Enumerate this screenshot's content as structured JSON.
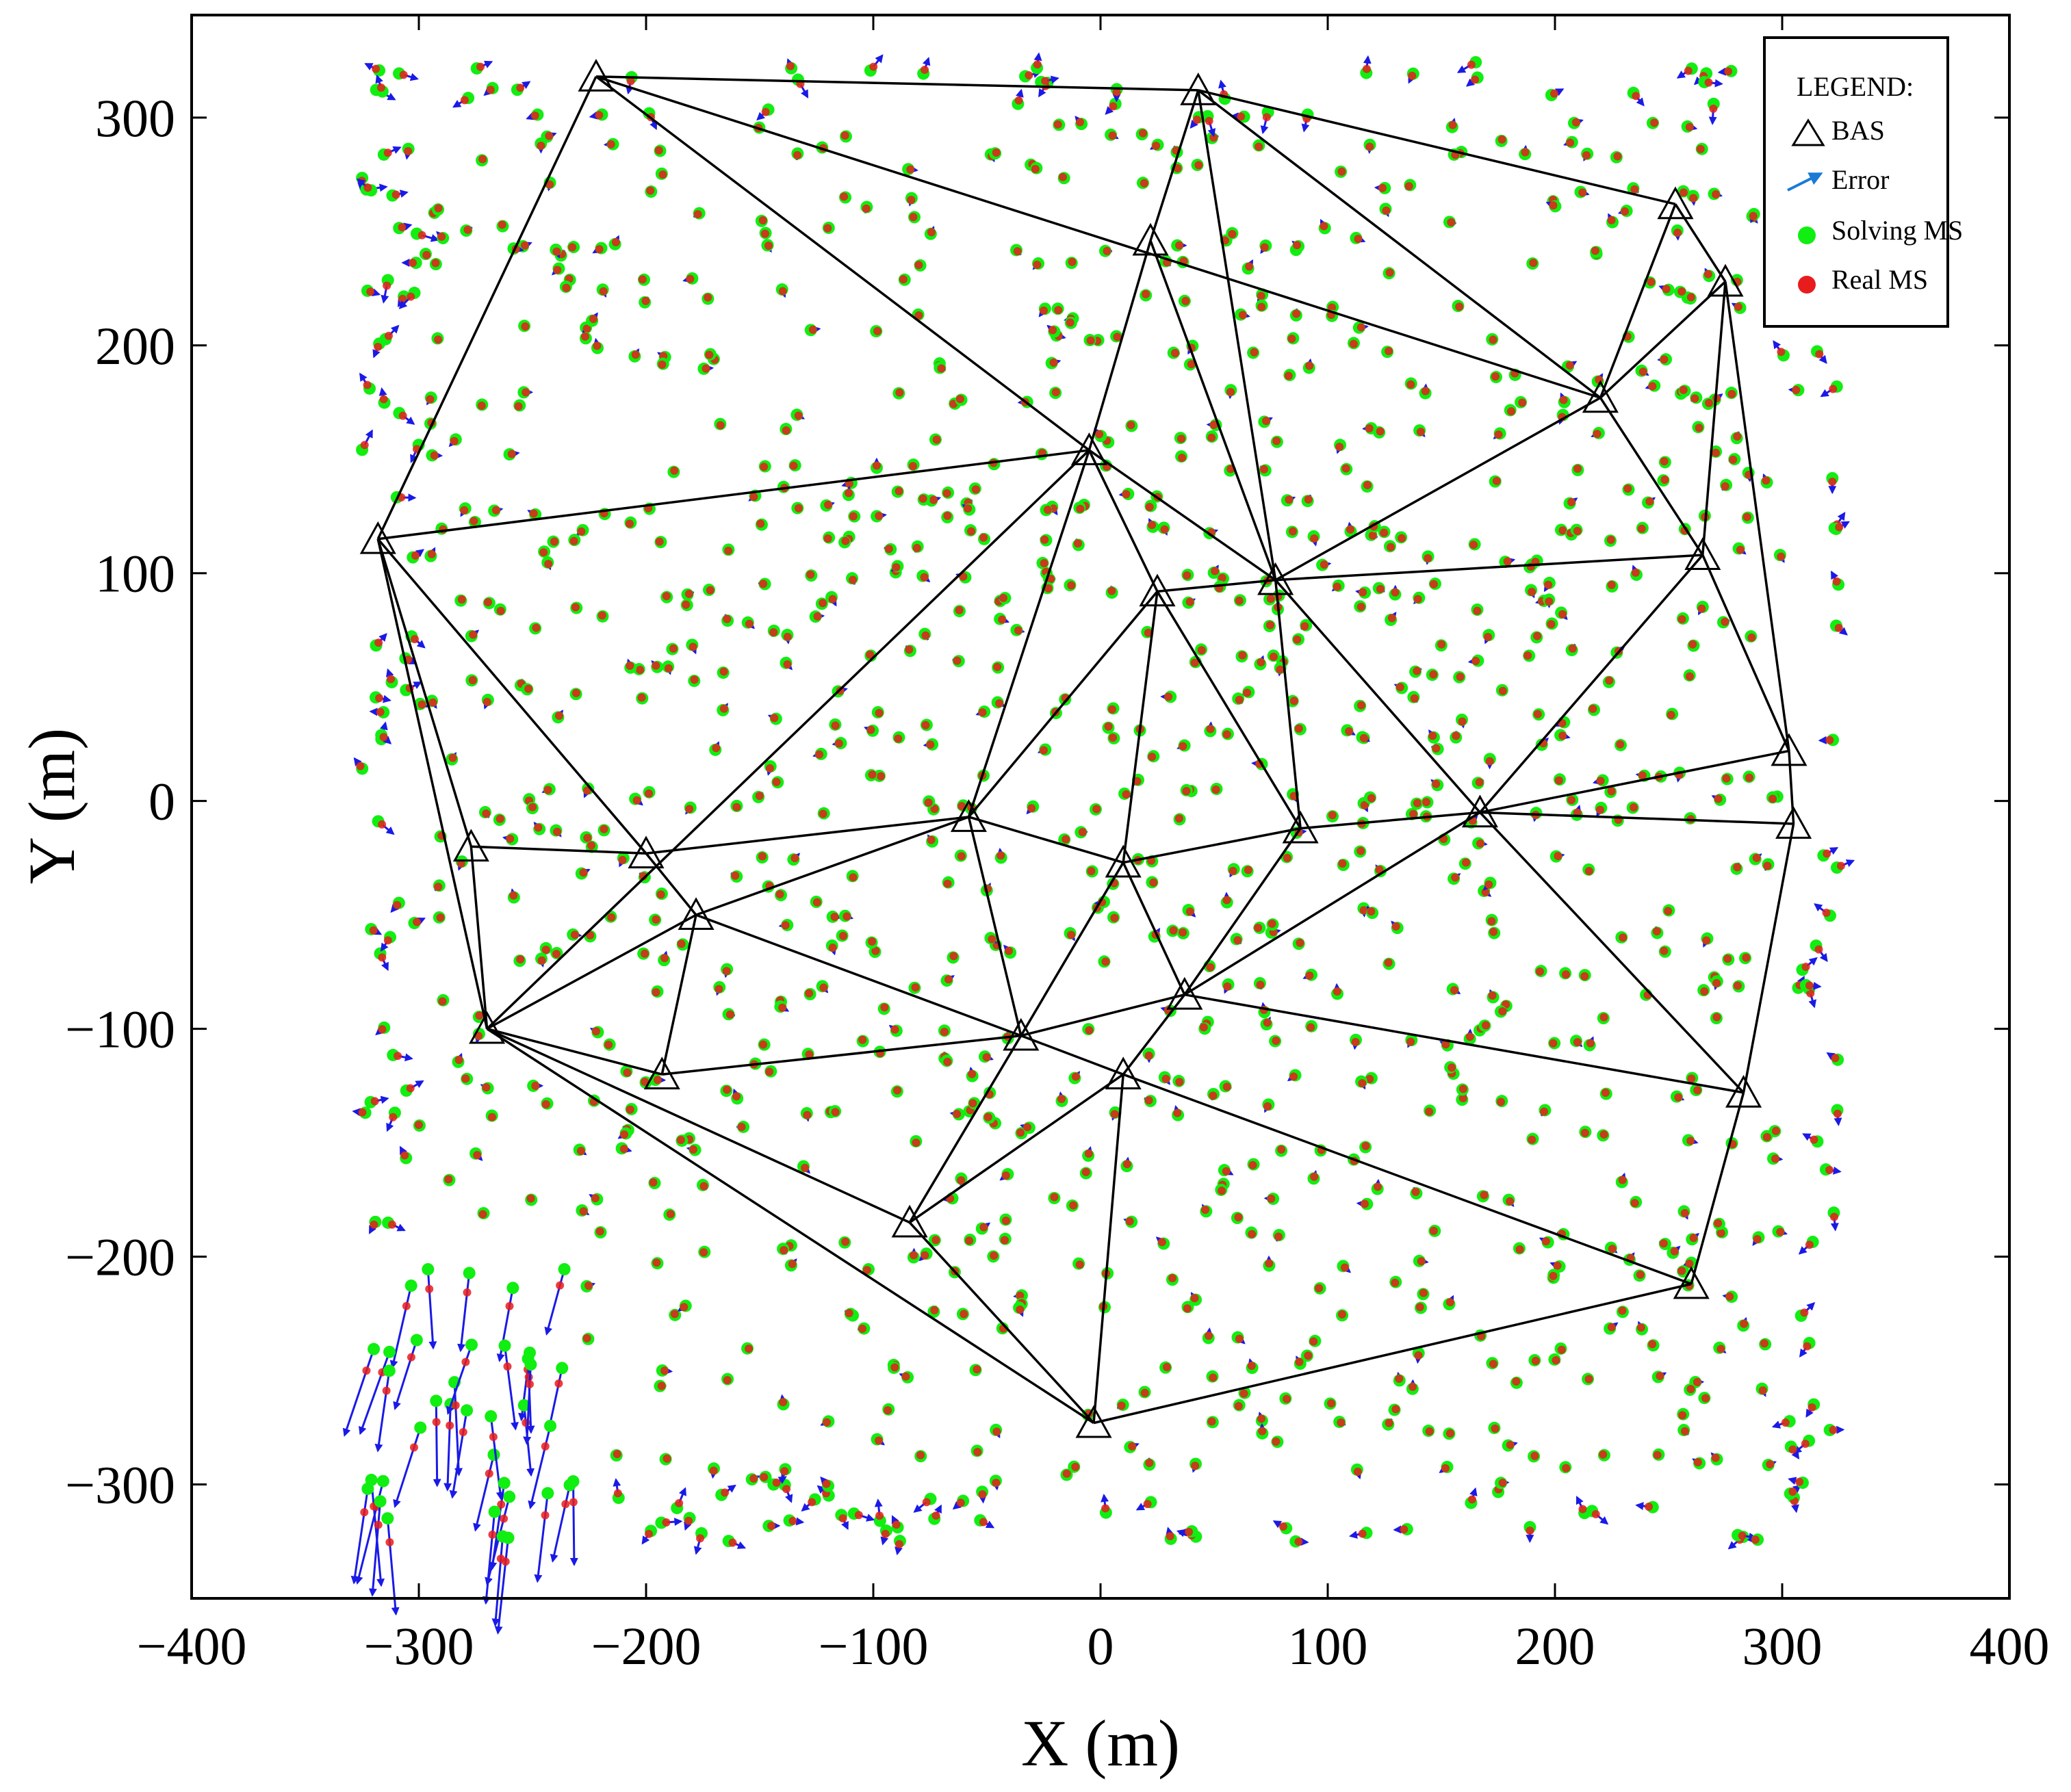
{
  "chart_data": {
    "type": "scatter",
    "title": "",
    "xlabel": "X (m)",
    "ylabel": "Y (m)",
    "xlim": [
      -400,
      400
    ],
    "ylim": [
      -350,
      345
    ],
    "xticks": [
      -400,
      -300,
      -200,
      -100,
      0,
      100,
      200,
      300,
      400
    ],
    "xtick_labels": [
      "−400",
      "−300",
      "−200",
      "−100",
      "0",
      "100",
      "200",
      "300",
      "400"
    ],
    "yticks": [
      -300,
      -200,
      -100,
      0,
      100,
      200,
      300
    ],
    "ytick_labels": [
      "−300",
      "−200",
      "−100",
      "0",
      "100",
      "200",
      "300"
    ],
    "grid": false,
    "legend": {
      "title": "LEGEND:",
      "placement": "top-right",
      "entries": [
        {
          "label": "BAS",
          "marker": "triangle"
        },
        {
          "label": "Error",
          "marker": "arrow"
        },
        {
          "label": "Solving MS",
          "marker": "dot"
        },
        {
          "label": "Real MS",
          "marker": "dot"
        }
      ]
    },
    "colors": {
      "bas": "#000000",
      "error": "#1a1ae6",
      "solving": "#11ee11",
      "real": "#e81c1c",
      "edges": "#000000"
    },
    "bas": [
      [
        -222,
        318
      ],
      [
        43,
        312
      ],
      [
        253,
        262
      ],
      [
        275,
        228
      ],
      [
        22,
        246
      ],
      [
        220,
        177
      ],
      [
        -5,
        154
      ],
      [
        -318,
        115
      ],
      [
        77,
        97
      ],
      [
        265,
        108
      ],
      [
        25,
        92
      ],
      [
        303,
        22
      ],
      [
        -277,
        -20
      ],
      [
        -200,
        -23
      ],
      [
        -58,
        -7
      ],
      [
        88,
        -12
      ],
      [
        167,
        -5
      ],
      [
        305,
        -10
      ],
      [
        10,
        -27
      ],
      [
        -178,
        -50
      ],
      [
        37,
        -85
      ],
      [
        -270,
        -100
      ],
      [
        -35,
        -103
      ],
      [
        -193,
        -120
      ],
      [
        10,
        -120
      ],
      [
        283,
        -128
      ],
      [
        -84,
        -185
      ],
      [
        260,
        -212
      ],
      [
        -3,
        -273
      ]
    ],
    "edges": [
      [
        0,
        1
      ],
      [
        1,
        2
      ],
      [
        2,
        3
      ],
      [
        0,
        7
      ],
      [
        0,
        6
      ],
      [
        0,
        5
      ],
      [
        1,
        4
      ],
      [
        1,
        5
      ],
      [
        1,
        8
      ],
      [
        2,
        5
      ],
      [
        3,
        5
      ],
      [
        3,
        9
      ],
      [
        3,
        11
      ],
      [
        4,
        6
      ],
      [
        4,
        8
      ],
      [
        5,
        9
      ],
      [
        5,
        8
      ],
      [
        6,
        7
      ],
      [
        6,
        8
      ],
      [
        6,
        10
      ],
      [
        6,
        14
      ],
      [
        6,
        21
      ],
      [
        7,
        12
      ],
      [
        7,
        13
      ],
      [
        7,
        21
      ],
      [
        8,
        10
      ],
      [
        8,
        9
      ],
      [
        8,
        15
      ],
      [
        8,
        16
      ],
      [
        9,
        16
      ],
      [
        9,
        11
      ],
      [
        10,
        14
      ],
      [
        10,
        15
      ],
      [
        10,
        18
      ],
      [
        11,
        16
      ],
      [
        11,
        17
      ],
      [
        12,
        21
      ],
      [
        12,
        13
      ],
      [
        13,
        14
      ],
      [
        13,
        19
      ],
      [
        14,
        19
      ],
      [
        14,
        18
      ],
      [
        14,
        22
      ],
      [
        15,
        16
      ],
      [
        15,
        18
      ],
      [
        15,
        20
      ],
      [
        16,
        17
      ],
      [
        16,
        20
      ],
      [
        16,
        25
      ],
      [
        17,
        25
      ],
      [
        18,
        20
      ],
      [
        18,
        22
      ],
      [
        19,
        21
      ],
      [
        19,
        22
      ],
      [
        19,
        23
      ],
      [
        20,
        22
      ],
      [
        20,
        24
      ],
      [
        20,
        25
      ],
      [
        21,
        23
      ],
      [
        21,
        26
      ],
      [
        21,
        28
      ],
      [
        22,
        23
      ],
      [
        22,
        24
      ],
      [
        22,
        26
      ],
      [
        24,
        26
      ],
      [
        24,
        27
      ],
      [
        24,
        28
      ],
      [
        25,
        27
      ],
      [
        26,
        28
      ],
      [
        27,
        28
      ]
    ],
    "ms_sample_count": 1200,
    "ms_seed": 7
  }
}
